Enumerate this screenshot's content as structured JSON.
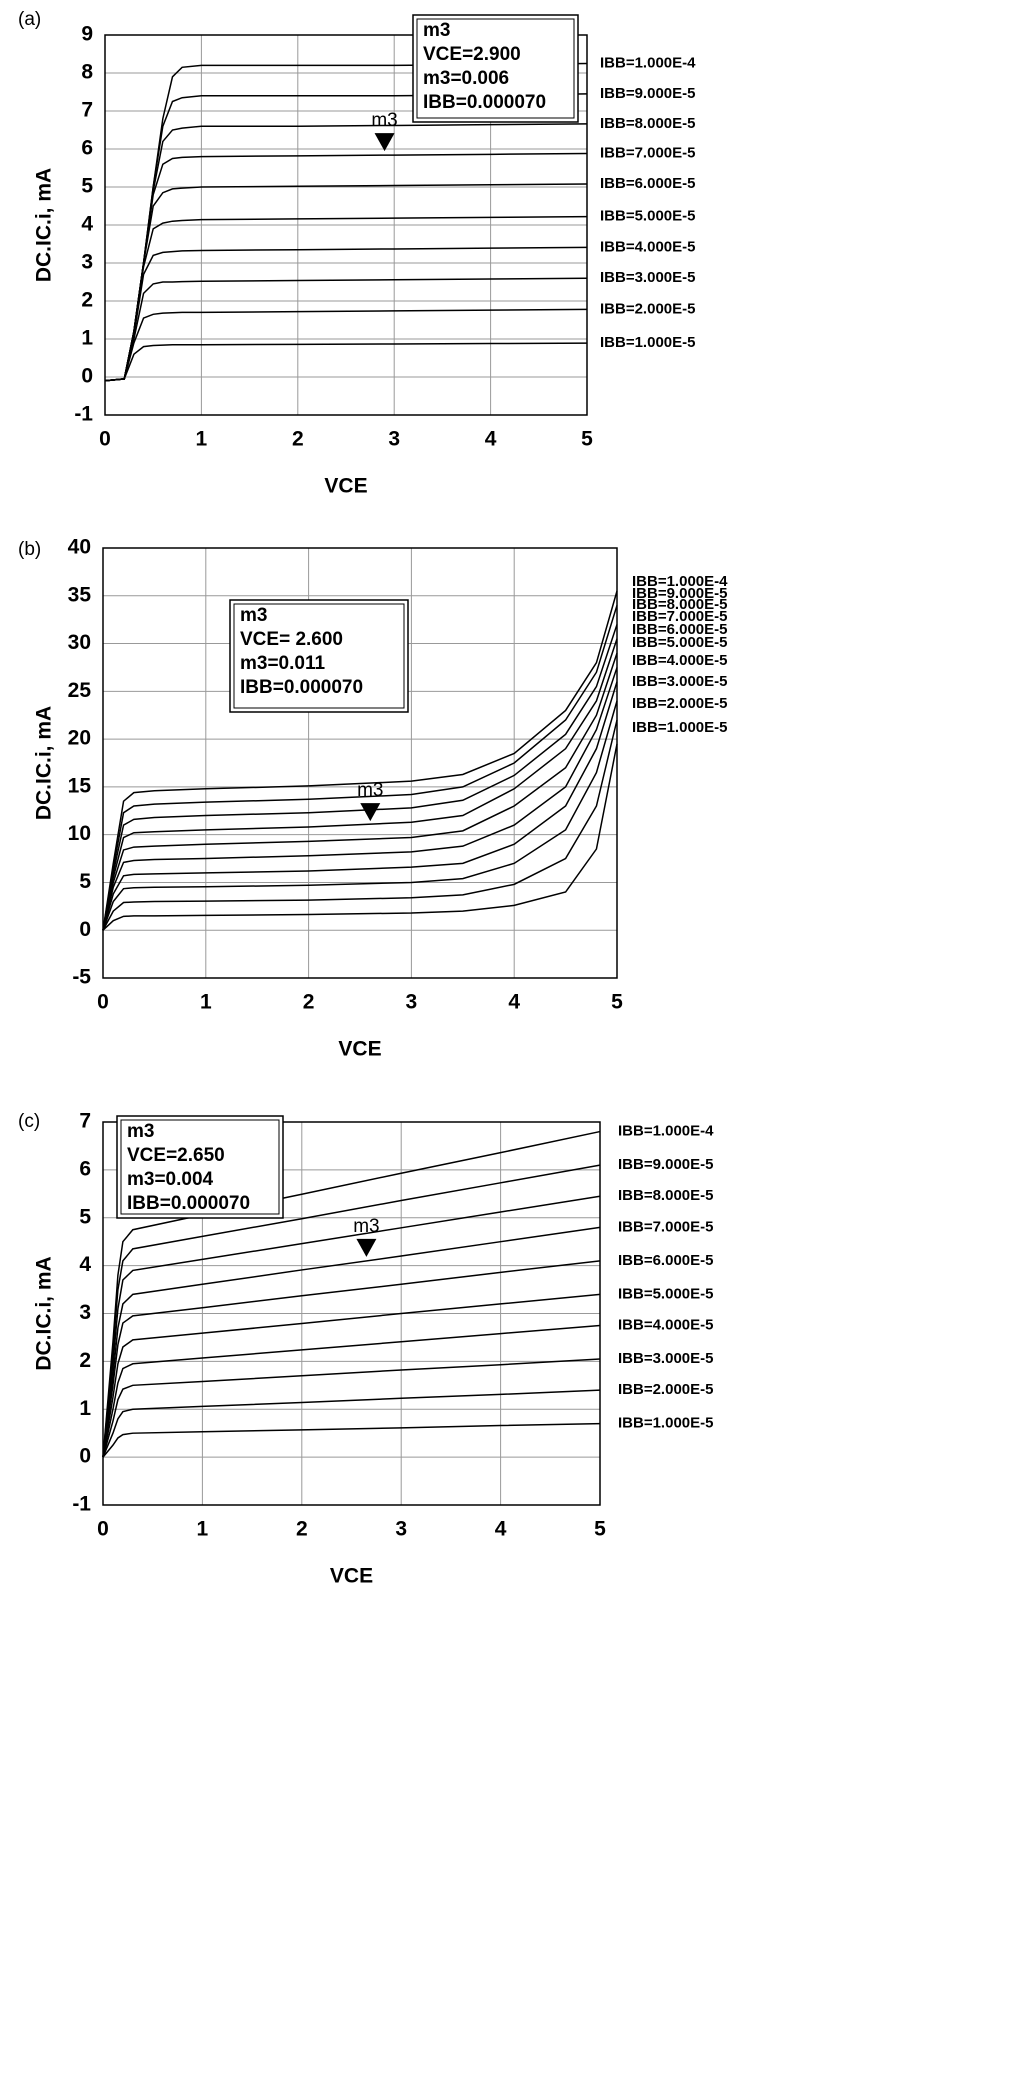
{
  "chart_data": [
    {
      "type": "line",
      "panel": "(a)",
      "x_label": "VCE",
      "y_label": "DC.IC.i, mA",
      "grid": true,
      "color": "#000000",
      "xlim": [
        0,
        5
      ],
      "xticks": [
        0,
        1,
        2,
        3,
        4,
        5
      ],
      "ylim": [
        -1,
        9
      ],
      "yticks": [
        -1,
        0,
        1,
        2,
        3,
        4,
        5,
        6,
        7,
        8,
        9
      ],
      "x": [
        0,
        0.2,
        0.3,
        0.4,
        0.5,
        0.6,
        0.7,
        0.8,
        1,
        2,
        3,
        4,
        5
      ],
      "series": [
        {
          "name": "IBB=1.000E-4",
          "values": [
            -0.1,
            -0.05,
            1.2,
            3.0,
            5.0,
            6.8,
            7.9,
            8.15,
            8.2,
            8.2,
            8.2,
            8.22,
            8.25
          ]
        },
        {
          "name": "IBB=9.000E-5",
          "values": [
            -0.1,
            -0.05,
            1.2,
            3.0,
            5.0,
            6.6,
            7.25,
            7.35,
            7.4,
            7.4,
            7.4,
            7.42,
            7.45
          ]
        },
        {
          "name": "IBB=8.000E-5",
          "values": [
            -0.1,
            -0.05,
            1.2,
            3.0,
            4.9,
            6.2,
            6.5,
            6.55,
            6.6,
            6.6,
            6.62,
            6.64,
            6.66
          ]
        },
        {
          "name": "IBB=7.000E-5",
          "values": [
            -0.1,
            -0.05,
            1.2,
            3.0,
            4.8,
            5.6,
            5.75,
            5.78,
            5.8,
            5.82,
            5.84,
            5.86,
            5.88
          ]
        },
        {
          "name": "IBB=6.000E-5",
          "values": [
            -0.1,
            -0.05,
            1.2,
            3.0,
            4.5,
            4.85,
            4.95,
            4.97,
            5.0,
            5.02,
            5.04,
            5.06,
            5.08
          ]
        },
        {
          "name": "IBB=5.000E-5",
          "values": [
            -0.1,
            -0.05,
            1.2,
            2.9,
            3.9,
            4.05,
            4.1,
            4.12,
            4.14,
            4.16,
            4.18,
            4.2,
            4.22
          ]
        },
        {
          "name": "IBB=4.000E-5",
          "values": [
            -0.1,
            -0.05,
            1.1,
            2.7,
            3.2,
            3.28,
            3.3,
            3.32,
            3.33,
            3.35,
            3.37,
            3.39,
            3.41
          ]
        },
        {
          "name": "IBB=3.000E-5",
          "values": [
            -0.1,
            -0.05,
            1.0,
            2.2,
            2.45,
            2.5,
            2.5,
            2.51,
            2.52,
            2.54,
            2.56,
            2.58,
            2.6
          ]
        },
        {
          "name": "IBB=2.000E-5",
          "values": [
            -0.1,
            -0.05,
            0.9,
            1.55,
            1.65,
            1.68,
            1.69,
            1.7,
            1.7,
            1.72,
            1.74,
            1.76,
            1.78
          ]
        },
        {
          "name": "IBB=1.000E-5",
          "values": [
            -0.1,
            -0.05,
            0.6,
            0.8,
            0.83,
            0.84,
            0.85,
            0.85,
            0.85,
            0.86,
            0.87,
            0.88,
            0.89
          ]
        }
      ],
      "marker": {
        "label": "m3",
        "x": 2.9,
        "y": 5.84
      },
      "box": [
        "m3",
        "VCE=2.900",
        "m3=0.006",
        "IBB=0.000070"
      ]
    },
    {
      "type": "line",
      "panel": "(b)",
      "x_label": "VCE",
      "y_label": "DC.IC.i, mA",
      "grid": true,
      "color": "#000000",
      "xlim": [
        0,
        5
      ],
      "xticks": [
        0,
        1,
        2,
        3,
        4,
        5
      ],
      "ylim": [
        -5,
        40
      ],
      "yticks": [
        -5,
        0,
        5,
        10,
        15,
        20,
        25,
        30,
        35,
        40
      ],
      "x": [
        0,
        0.1,
        0.2,
        0.3,
        0.5,
        1,
        2,
        3,
        3.5,
        4,
        4.5,
        4.8,
        5
      ],
      "series": [
        {
          "name": "IBB=1.000E-4",
          "values": [
            0,
            7,
            13.5,
            14.4,
            14.6,
            14.8,
            15.1,
            15.6,
            16.3,
            18.5,
            23,
            28,
            35.5
          ]
        },
        {
          "name": "IBB=9.000E-5",
          "values": [
            0,
            6.5,
            12.3,
            13.0,
            13.2,
            13.4,
            13.7,
            14.2,
            15,
            17.5,
            22,
            27,
            34
          ]
        },
        {
          "name": "IBB=8.000E-5",
          "values": [
            0,
            6,
            11,
            11.6,
            11.8,
            12,
            12.3,
            12.8,
            13.6,
            16.2,
            20.5,
            25.5,
            32
          ]
        },
        {
          "name": "IBB=7.000E-5",
          "values": [
            0,
            5.5,
            9.7,
            10.2,
            10.3,
            10.5,
            10.8,
            11.3,
            12,
            14.8,
            19,
            24,
            30.5
          ]
        },
        {
          "name": "IBB=6.000E-5",
          "values": [
            0,
            5,
            8.4,
            8.7,
            8.8,
            9,
            9.3,
            9.7,
            10.4,
            13,
            17,
            22.5,
            29
          ]
        },
        {
          "name": "IBB=5.000E-5",
          "values": [
            0,
            4.5,
            7.1,
            7.3,
            7.4,
            7.5,
            7.8,
            8.2,
            8.8,
            11,
            15,
            21,
            27.5
          ]
        },
        {
          "name": "IBB=4.000E-5",
          "values": [
            0,
            3.8,
            5.7,
            5.85,
            5.9,
            6,
            6.2,
            6.6,
            7,
            9,
            13,
            19,
            26
          ]
        },
        {
          "name": "IBB=3.000E-5",
          "values": [
            0,
            3,
            4.35,
            4.45,
            4.5,
            4.55,
            4.7,
            5,
            5.4,
            7,
            10.5,
            16.5,
            24
          ]
        },
        {
          "name": "IBB=2.000E-5",
          "values": [
            0,
            2,
            2.9,
            2.95,
            3,
            3.05,
            3.15,
            3.4,
            3.7,
            4.8,
            7.5,
            13,
            22
          ]
        },
        {
          "name": "IBB=1.000E-5",
          "values": [
            0,
            1,
            1.45,
            1.5,
            1.5,
            1.55,
            1.65,
            1.8,
            2,
            2.6,
            4,
            8.5,
            19.5
          ]
        }
      ],
      "marker": {
        "label": "m3",
        "x": 2.6,
        "y": 11.0
      },
      "box": [
        "m3",
        "VCE= 2.600",
        "m3=0.011",
        "IBB=0.000070"
      ]
    },
    {
      "type": "line",
      "panel": "(c)",
      "x_label": "VCE",
      "y_label": "DC.IC.i, mA",
      "grid": true,
      "color": "#000000",
      "xlim": [
        0,
        5
      ],
      "xticks": [
        0,
        1,
        2,
        3,
        4,
        5
      ],
      "ylim": [
        -1,
        7
      ],
      "yticks": [
        -1,
        0,
        1,
        2,
        3,
        4,
        5,
        6,
        7
      ],
      "x": [
        0,
        0.1,
        0.15,
        0.2,
        0.3,
        1,
        2,
        3,
        4,
        5
      ],
      "series": [
        {
          "name": "IBB=1.000E-4",
          "values": [
            0,
            2.4,
            3.8,
            4.5,
            4.75,
            5.06,
            5.49,
            5.93,
            6.36,
            6.8
          ]
        },
        {
          "name": "IBB=9.000E-5",
          "values": [
            0,
            2.2,
            3.5,
            4.1,
            4.35,
            4.61,
            4.98,
            5.36,
            5.73,
            6.1
          ]
        },
        {
          "name": "IBB=8.000E-5",
          "values": [
            0,
            1.95,
            3.1,
            3.7,
            3.9,
            4.13,
            4.46,
            4.79,
            5.12,
            5.45
          ]
        },
        {
          "name": "IBB=7.000E-5",
          "values": [
            0,
            1.7,
            2.7,
            3.2,
            3.4,
            3.61,
            3.91,
            4.2,
            4.5,
            4.8
          ]
        },
        {
          "name": "IBB=6.000E-5",
          "values": [
            0,
            1.5,
            2.35,
            2.8,
            2.95,
            3.12,
            3.37,
            3.61,
            3.86,
            4.1
          ]
        },
        {
          "name": "IBB=5.000E-5",
          "values": [
            0,
            1.25,
            1.95,
            2.3,
            2.45,
            2.59,
            2.79,
            3.0,
            3.2,
            3.4
          ]
        },
        {
          "name": "IBB=4.000E-5",
          "values": [
            0,
            1.0,
            1.55,
            1.85,
            1.95,
            2.07,
            2.24,
            2.41,
            2.58,
            2.75
          ]
        },
        {
          "name": "IBB=3.000E-5",
          "values": [
            0,
            0.75,
            1.2,
            1.42,
            1.5,
            1.58,
            1.7,
            1.82,
            1.93,
            2.05
          ]
        },
        {
          "name": "IBB=2.000E-5",
          "values": [
            0,
            0.5,
            0.8,
            0.95,
            1.0,
            1.06,
            1.14,
            1.23,
            1.31,
            1.4
          ]
        },
        {
          "name": "IBB=1.000E-5",
          "values": [
            0,
            0.25,
            0.4,
            0.47,
            0.5,
            0.53,
            0.57,
            0.61,
            0.66,
            0.7
          ]
        }
      ],
      "marker": {
        "label": "m3",
        "x": 2.65,
        "y": 4.1
      },
      "box": [
        "m3",
        "VCE=2.650",
        "m3=0.004",
        "IBB=0.000070"
      ]
    }
  ]
}
